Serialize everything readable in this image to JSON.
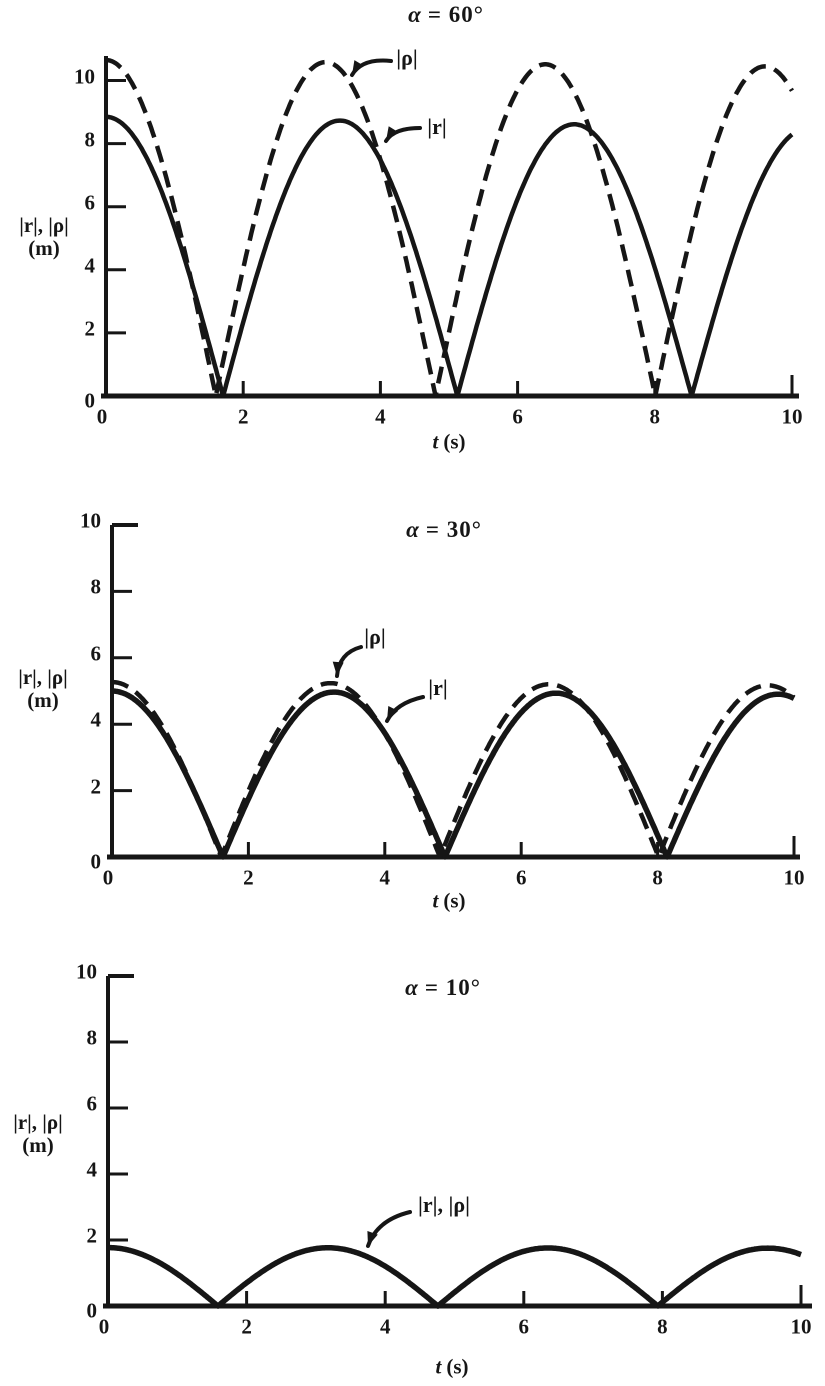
{
  "figure": {
    "background": "#ffffff",
    "ink": "#161616",
    "kind": "scanned black-and-white line plots, 3 stacked panels"
  },
  "chart_data": [
    {
      "type": "line",
      "title_symbol": "α",
      "title_rest": "= 60°",
      "alpha_degrees": 60,
      "ylabel_line1": "|r|, |ρ|",
      "ylabel_line2": "(m)",
      "xlabel_symbol": "t",
      "xlabel_rest": "(s)",
      "x_range": [
        0,
        10
      ],
      "y_range_shown": [
        0,
        10
      ],
      "grid": false,
      "x_tick_values": [
        0,
        2,
        4,
        6,
        8,
        10
      ],
      "x_tick_labels": [
        "0",
        "2",
        "4",
        "6",
        "8",
        "10"
      ],
      "y_tick_values": [
        0,
        2,
        4,
        6,
        8,
        10
      ],
      "y_tick_labels": [
        "0",
        "2",
        "4",
        "6",
        "8",
        "10"
      ],
      "annotations": [
        {
          "label": "|ρ|",
          "points_to": "dashed curve"
        },
        {
          "label": "|r|",
          "points_to": "solid curve"
        }
      ],
      "series": [
        {
          "name": "|ρ|",
          "style": "dashed",
          "line_width": 4.5,
          "model": {
            "type": "abs_damped_cosine",
            "formula": "v(t)=A*exp(-k*t)*|cos(omega*t)|",
            "A": 10.65,
            "omega_rad_per_s": 0.981,
            "k": 0.002
          },
          "zeros_t": [
            1.6,
            4.8,
            8.01
          ],
          "peaks": [
            {
              "t": 0,
              "v": 10.65
            },
            {
              "t": 3.2,
              "v": 10.58
            },
            {
              "t": 6.4,
              "v": 10.51
            },
            {
              "t": 9.61,
              "v": 10.45
            }
          ],
          "end_value_at_t10": 9.66
        },
        {
          "name": "|r|",
          "style": "solid",
          "line_width": 4.5,
          "model": {
            "type": "abs_damped_cosine",
            "formula": "v(t)=A*exp(-k*t)*|cos(omega*t)|",
            "A": 8.85,
            "omega_rad_per_s": 0.92,
            "k": 0.004
          },
          "zeros_t": [
            1.71,
            5.12,
            8.54
          ],
          "peaks": [
            {
              "t": 0,
              "v": 8.85
            },
            {
              "t": 3.41,
              "v": 8.73
            },
            {
              "t": 6.83,
              "v": 8.62
            }
          ],
          "end_value_at_t10": 8.3
        }
      ]
    },
    {
      "type": "line",
      "title_symbol": "α",
      "title_rest": "= 30°",
      "alpha_degrees": 30,
      "ylabel_line1": "|r|, |ρ|",
      "ylabel_line2": "(m)",
      "xlabel_symbol": "t",
      "xlabel_rest": "(s)",
      "x_range": [
        0,
        10
      ],
      "y_range_shown": [
        0,
        10
      ],
      "grid": false,
      "x_tick_values": [
        0,
        2,
        4,
        6,
        8,
        10
      ],
      "x_tick_labels": [
        "0",
        "2",
        "4",
        "6",
        "8",
        "10"
      ],
      "y_tick_values": [
        0,
        2,
        4,
        6,
        8,
        10
      ],
      "y_tick_labels": [
        "0",
        "2",
        "4",
        "6",
        "8",
        "10"
      ],
      "annotations": [
        {
          "label": "|ρ|",
          "points_to": "dashed curve"
        },
        {
          "label": "|r|",
          "points_to": "solid curve"
        }
      ],
      "series": [
        {
          "name": "|ρ|",
          "style": "dashed",
          "line_width": 4.5,
          "model": {
            "type": "abs_damped_cosine",
            "formula": "v(t)=A*exp(-k*t)*|cos(omega*t)|",
            "A": 5.27,
            "omega_rad_per_s": 0.98,
            "k": 0.002
          },
          "zeros_t": [
            1.6,
            4.81,
            8.02
          ],
          "peaks": [
            {
              "t": 0,
              "v": 5.27
            },
            {
              "t": 3.21,
              "v": 5.24
            },
            {
              "t": 6.41,
              "v": 5.2
            },
            {
              "t": 9.62,
              "v": 5.17
            }
          ],
          "end_value_at_t10": 4.76
        },
        {
          "name": "|r|",
          "style": "solid",
          "line_width": 5.5,
          "model": {
            "type": "abs_damped_cosine",
            "formula": "v(t)=A*exp(-k*t)*|cos(omega*t)|",
            "A": 5.0,
            "omega_rad_per_s": 0.965,
            "k": 0.002
          },
          "zeros_t": [
            1.63,
            4.88,
            8.14
          ],
          "peaks": [
            {
              "t": 0,
              "v": 5.0
            },
            {
              "t": 3.26,
              "v": 4.97
            },
            {
              "t": 6.51,
              "v": 4.93
            },
            {
              "t": 9.77,
              "v": 4.9
            }
          ],
          "end_value_at_t10": 4.78
        }
      ]
    },
    {
      "type": "line",
      "title_symbol": "α",
      "title_rest": "= 10°",
      "alpha_degrees": 10,
      "ylabel_line1": "|r|, |ρ|",
      "ylabel_line2": "(m)",
      "xlabel_symbol": "t",
      "xlabel_rest": "(s)",
      "x_range": [
        0,
        10
      ],
      "y_range_shown": [
        0,
        10
      ],
      "grid": false,
      "x_tick_values": [
        0,
        2,
        4,
        6,
        8,
        10
      ],
      "x_tick_labels": [
        "0",
        "2",
        "4",
        "6",
        "8",
        "10"
      ],
      "y_tick_values": [
        0,
        2,
        4,
        6,
        8,
        10
      ],
      "y_tick_labels": [
        "0",
        "2",
        "4",
        "6",
        "8",
        "10"
      ],
      "annotations": [
        {
          "label": "|r|, |ρ|",
          "points_to": "single overlapping curve"
        }
      ],
      "series": [
        {
          "name": "|r|, |ρ|",
          "style": "solid",
          "line_width": 5.5,
          "model": {
            "type": "abs_damped_cosine",
            "formula": "v(t)=A*exp(-k*t)*|cos(omega*t)|",
            "A": 1.77,
            "omega_rad_per_s": 0.99,
            "k": 0.001
          },
          "zeros_t": [
            1.59,
            4.76,
            7.93
          ],
          "peaks": [
            {
              "t": 0,
              "v": 1.77
            },
            {
              "t": 3.17,
              "v": 1.76
            },
            {
              "t": 6.35,
              "v": 1.76
            },
            {
              "t": 9.52,
              "v": 1.75
            }
          ],
          "end_value_at_t10": 1.56
        }
      ]
    }
  ]
}
